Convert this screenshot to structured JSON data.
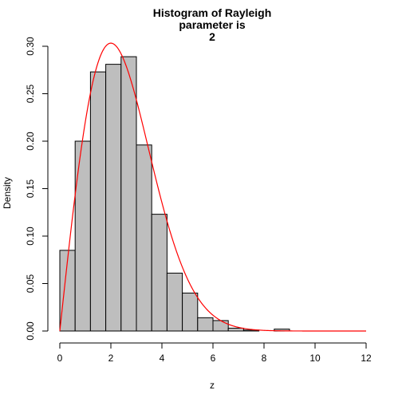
{
  "chart_data": {
    "type": "bar",
    "title_lines": [
      "Histogram of Rayleigh",
      "parameter is",
      "2"
    ],
    "xlabel": "z",
    "ylabel": "Density",
    "xlim": [
      0,
      12
    ],
    "ylim": [
      0,
      0.3
    ],
    "x_ticks": [
      0,
      2,
      4,
      6,
      8,
      10,
      12
    ],
    "x_tick_labels": [
      "0",
      "2",
      "4",
      "6",
      "8",
      "10",
      "12"
    ],
    "y_ticks": [
      0,
      0.05,
      0.1,
      0.15,
      0.2,
      0.25,
      0.3
    ],
    "y_tick_labels": [
      "0.00",
      "0.05",
      "0.10",
      "0.15",
      "0.20",
      "0.25",
      "0.30"
    ],
    "bin_width": 0.6,
    "bins": [
      {
        "start": 0.0,
        "end": 0.6,
        "density": 0.085
      },
      {
        "start": 0.6,
        "end": 1.2,
        "density": 0.2
      },
      {
        "start": 1.2,
        "end": 1.8,
        "density": 0.273
      },
      {
        "start": 1.8,
        "end": 2.4,
        "density": 0.281
      },
      {
        "start": 2.4,
        "end": 3.0,
        "density": 0.289
      },
      {
        "start": 3.0,
        "end": 3.6,
        "density": 0.196
      },
      {
        "start": 3.6,
        "end": 4.2,
        "density": 0.123
      },
      {
        "start": 4.2,
        "end": 4.8,
        "density": 0.061
      },
      {
        "start": 4.8,
        "end": 5.4,
        "density": 0.04
      },
      {
        "start": 5.4,
        "end": 6.0,
        "density": 0.014
      },
      {
        "start": 6.0,
        "end": 6.6,
        "density": 0.011
      },
      {
        "start": 6.6,
        "end": 7.2,
        "density": 0.003
      },
      {
        "start": 7.2,
        "end": 7.8,
        "density": 0.001
      },
      {
        "start": 7.8,
        "end": 8.4,
        "density": 0.0
      },
      {
        "start": 8.4,
        "end": 9.0,
        "density": 0.002
      }
    ],
    "bar_fill": "#bebebe",
    "bar_stroke": "#000000",
    "curve": {
      "type": "rayleigh-density",
      "sigma": 2,
      "x_range": [
        0,
        12
      ],
      "color": "#ff0000"
    },
    "grid": false
  }
}
